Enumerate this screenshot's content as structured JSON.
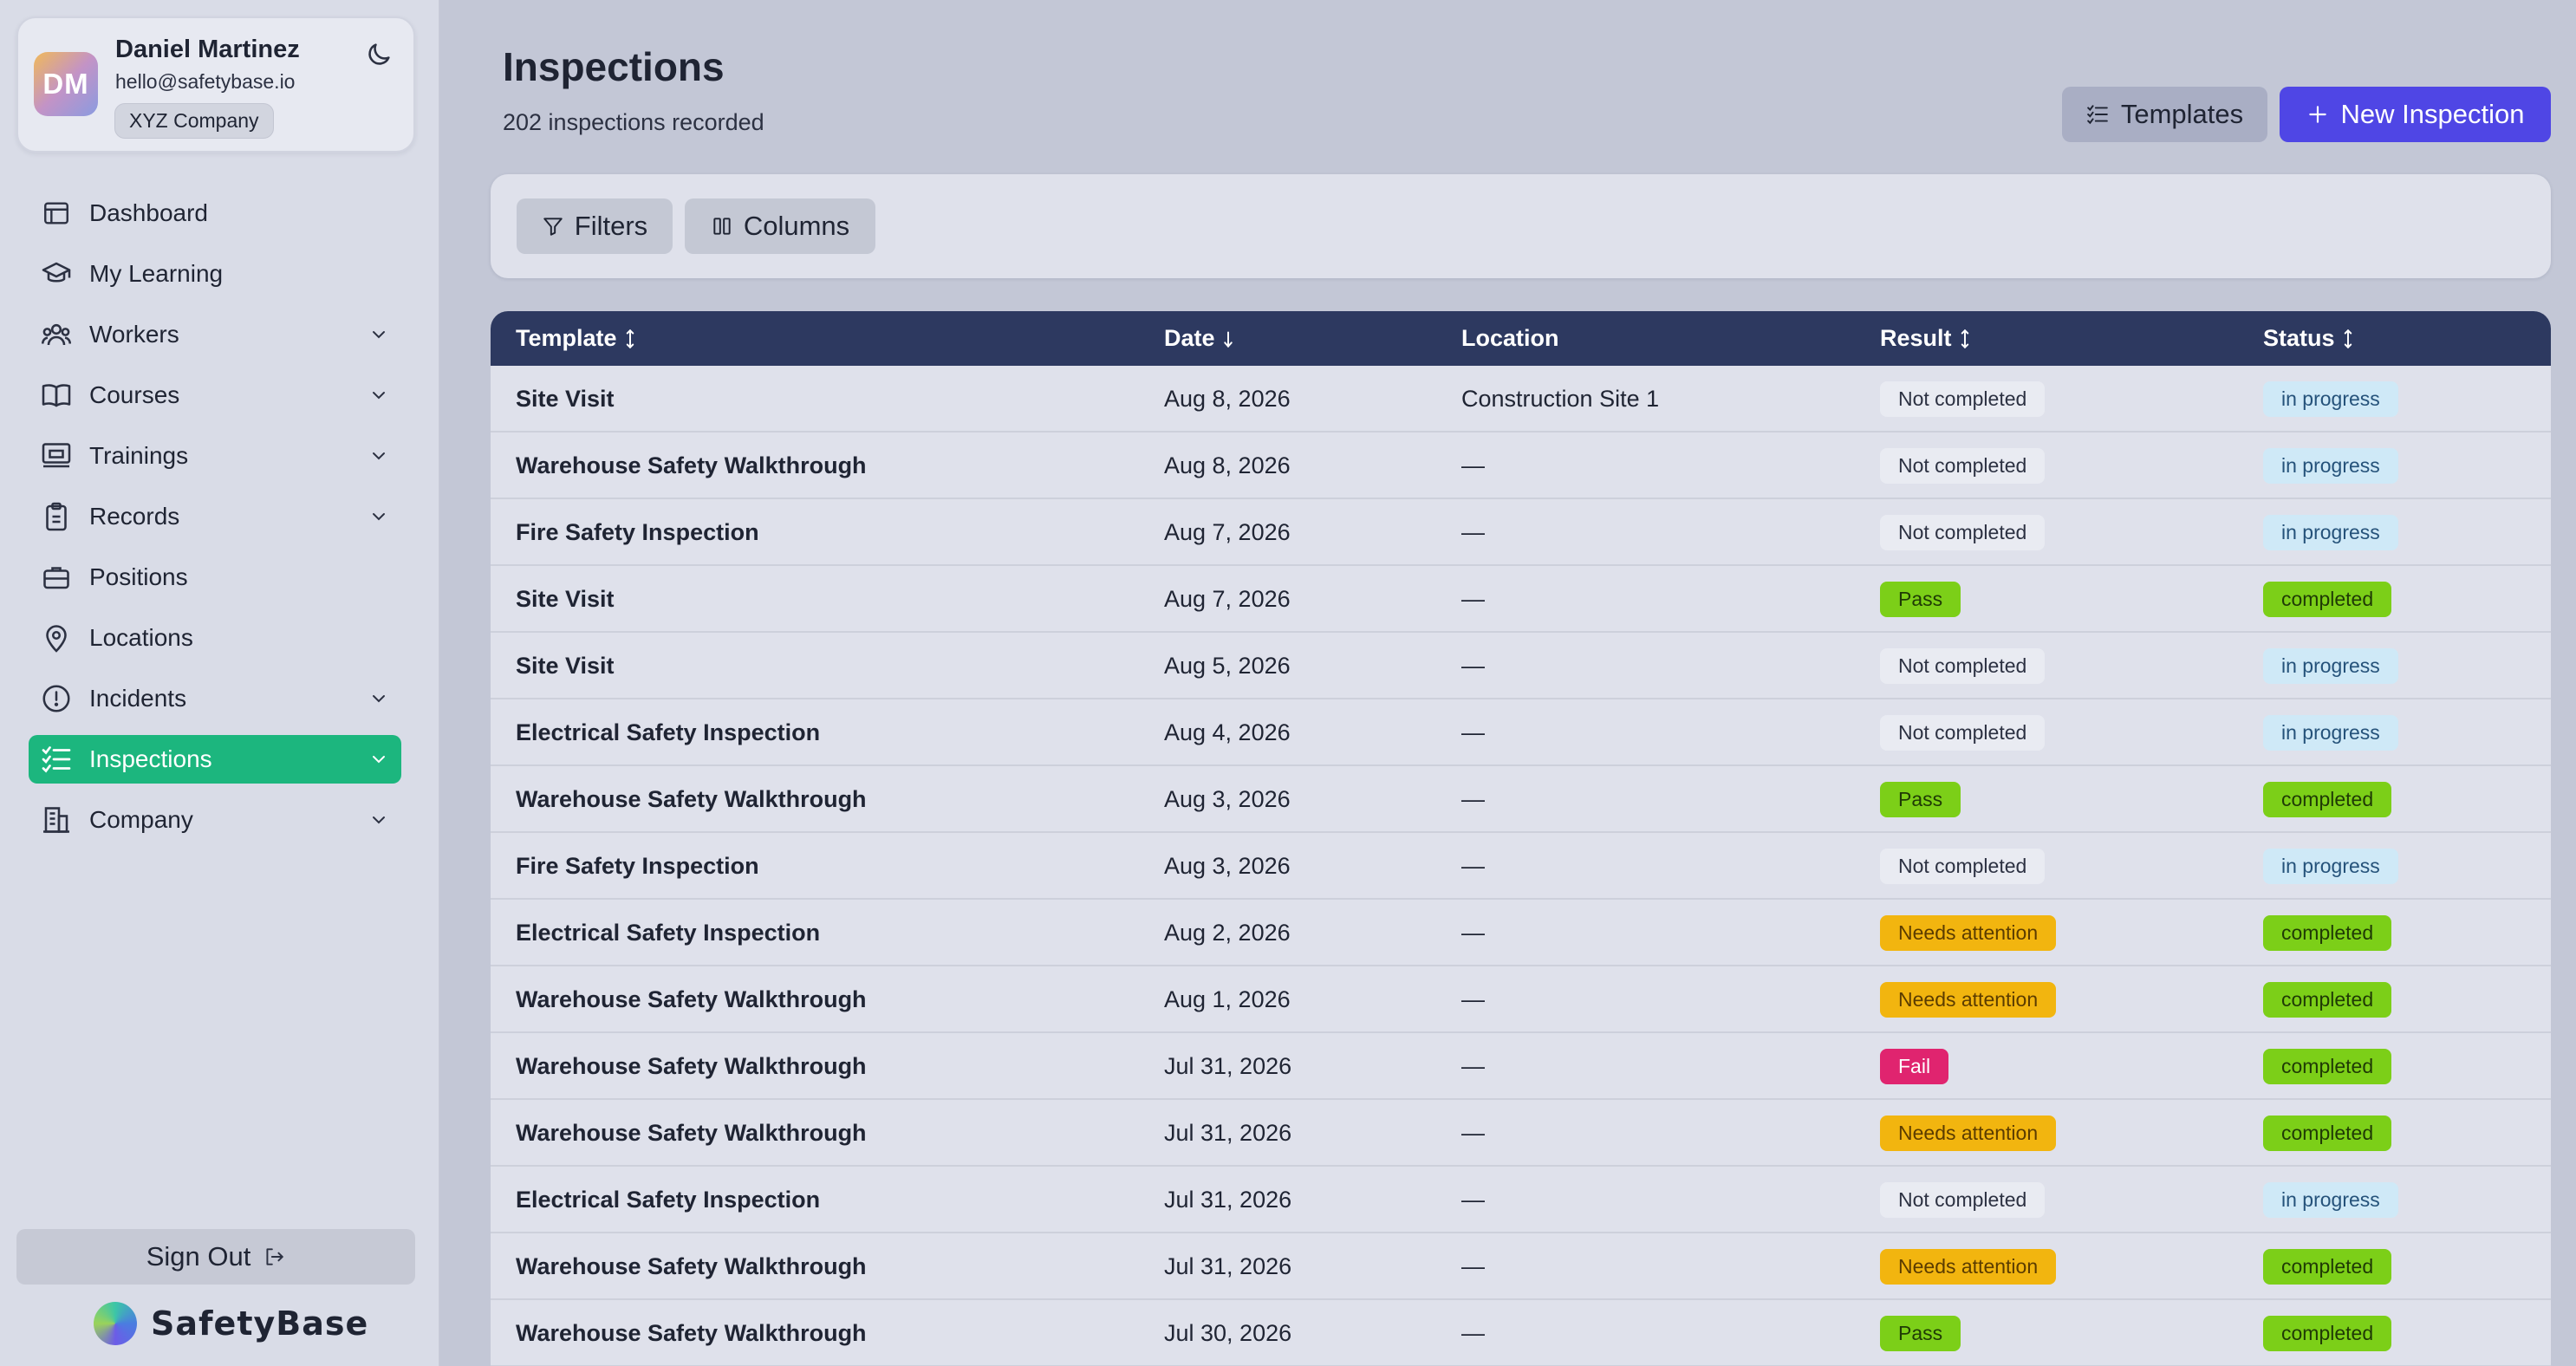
{
  "user": {
    "initials": "DM",
    "name": "Daniel Martinez",
    "email": "hello@safetybase.io",
    "company": "XYZ Company"
  },
  "nav": [
    {
      "label": "Dashboard",
      "icon": "dashboard-icon",
      "expandable": false,
      "active": false
    },
    {
      "label": "My Learning",
      "icon": "graduation-cap-icon",
      "expandable": false,
      "active": false
    },
    {
      "label": "Workers",
      "icon": "users-icon",
      "expandable": true,
      "active": false
    },
    {
      "label": "Courses",
      "icon": "book-icon",
      "expandable": true,
      "active": false
    },
    {
      "label": "Trainings",
      "icon": "presentation-icon",
      "expandable": true,
      "active": false
    },
    {
      "label": "Records",
      "icon": "clipboard-icon",
      "expandable": true,
      "active": false
    },
    {
      "label": "Positions",
      "icon": "briefcase-icon",
      "expandable": false,
      "active": false
    },
    {
      "label": "Locations",
      "icon": "map-pin-icon",
      "expandable": false,
      "active": false
    },
    {
      "label": "Incidents",
      "icon": "alert-circle-icon",
      "expandable": true,
      "active": false
    },
    {
      "label": "Inspections",
      "icon": "checklist-icon",
      "expandable": true,
      "active": true
    },
    {
      "label": "Company",
      "icon": "building-icon",
      "expandable": true,
      "active": false
    }
  ],
  "sidebar_footer": {
    "sign_out_label": "Sign Out",
    "brand_name": "SafetyBase"
  },
  "page": {
    "title": "Inspections",
    "subtitle": "202 inspections recorded",
    "templates_label": "Templates",
    "new_label": "New Inspection"
  },
  "toolbar": {
    "filters_label": "Filters",
    "columns_label": "Columns"
  },
  "table": {
    "headers": {
      "template": "Template",
      "date": "Date",
      "location": "Location",
      "result": "Result",
      "status": "Status"
    },
    "rows": [
      {
        "template": "Site Visit",
        "date": "Aug 8, 2026",
        "location": "Construction Site 1",
        "result": "Not completed",
        "status": "in progress"
      },
      {
        "template": "Warehouse Safety Walkthrough",
        "date": "Aug 8, 2026",
        "location": "—",
        "result": "Not completed",
        "status": "in progress"
      },
      {
        "template": "Fire Safety Inspection",
        "date": "Aug 7, 2026",
        "location": "—",
        "result": "Not completed",
        "status": "in progress"
      },
      {
        "template": "Site Visit",
        "date": "Aug 7, 2026",
        "location": "—",
        "result": "Pass",
        "status": "completed"
      },
      {
        "template": "Site Visit",
        "date": "Aug 5, 2026",
        "location": "—",
        "result": "Not completed",
        "status": "in progress"
      },
      {
        "template": "Electrical Safety Inspection",
        "date": "Aug 4, 2026",
        "location": "—",
        "result": "Not completed",
        "status": "in progress"
      },
      {
        "template": "Warehouse Safety Walkthrough",
        "date": "Aug 3, 2026",
        "location": "—",
        "result": "Pass",
        "status": "completed"
      },
      {
        "template": "Fire Safety Inspection",
        "date": "Aug 3, 2026",
        "location": "—",
        "result": "Not completed",
        "status": "in progress"
      },
      {
        "template": "Electrical Safety Inspection",
        "date": "Aug 2, 2026",
        "location": "—",
        "result": "Needs attention",
        "status": "completed"
      },
      {
        "template": "Warehouse Safety Walkthrough",
        "date": "Aug 1, 2026",
        "location": "—",
        "result": "Needs attention",
        "status": "completed"
      },
      {
        "template": "Warehouse Safety Walkthrough",
        "date": "Jul 31, 2026",
        "location": "—",
        "result": "Fail",
        "status": "completed"
      },
      {
        "template": "Warehouse Safety Walkthrough",
        "date": "Jul 31, 2026",
        "location": "—",
        "result": "Needs attention",
        "status": "completed"
      },
      {
        "template": "Electrical Safety Inspection",
        "date": "Jul 31, 2026",
        "location": "—",
        "result": "Not completed",
        "status": "in progress"
      },
      {
        "template": "Warehouse Safety Walkthrough",
        "date": "Jul 31, 2026",
        "location": "—",
        "result": "Needs attention",
        "status": "completed"
      },
      {
        "template": "Warehouse Safety Walkthrough",
        "date": "Jul 30, 2026",
        "location": "—",
        "result": "Pass",
        "status": "completed"
      }
    ]
  },
  "colors": {
    "active_nav": "#1cb67e",
    "primary": "#4f46e5",
    "table_header": "#2d3960",
    "pass": "#7ccf18",
    "needs_attention": "#f2b50f",
    "fail": "#e0246f",
    "in_progress": "#cfe9f7"
  }
}
